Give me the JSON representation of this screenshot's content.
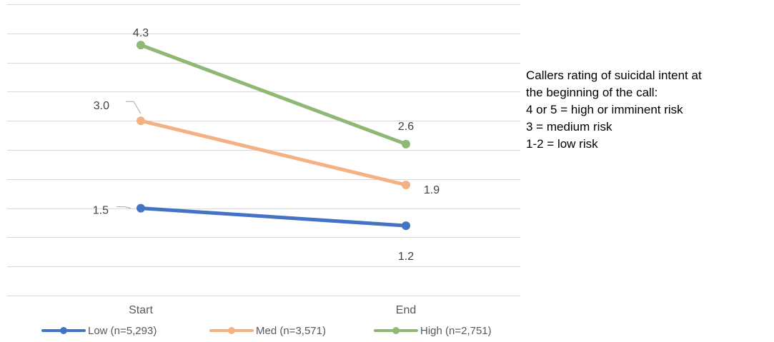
{
  "chart_data": {
    "type": "line",
    "categories": [
      "Start",
      "End"
    ],
    "ylim": [
      0,
      5
    ],
    "grid": true,
    "legend_position": "bottom",
    "series": [
      {
        "name": "Low (n=5,293)",
        "values": [
          1.5,
          1.2
        ],
        "labels": [
          "1.5",
          "1.2"
        ],
        "color": "#4472C4"
      },
      {
        "name": "Med (n=3,571)",
        "values": [
          3.0,
          1.9
        ],
        "labels": [
          "3.0",
          "1.9"
        ],
        "color": "#F4B183"
      },
      {
        "name": "High (n=2,751)",
        "values": [
          4.3,
          2.6
        ],
        "labels": [
          "4.3",
          "2.6"
        ],
        "color": "#8FB874"
      }
    ]
  },
  "note": {
    "lines": [
      "Callers rating of suicidal intent at",
      "the beginning of the call:",
      "4 or 5 = high or imminent risk",
      "3 = medium risk",
      "1-2 = low risk"
    ]
  },
  "colors": {
    "gridline": "#D9D9D9",
    "leader_line": "#A6A6A6"
  }
}
